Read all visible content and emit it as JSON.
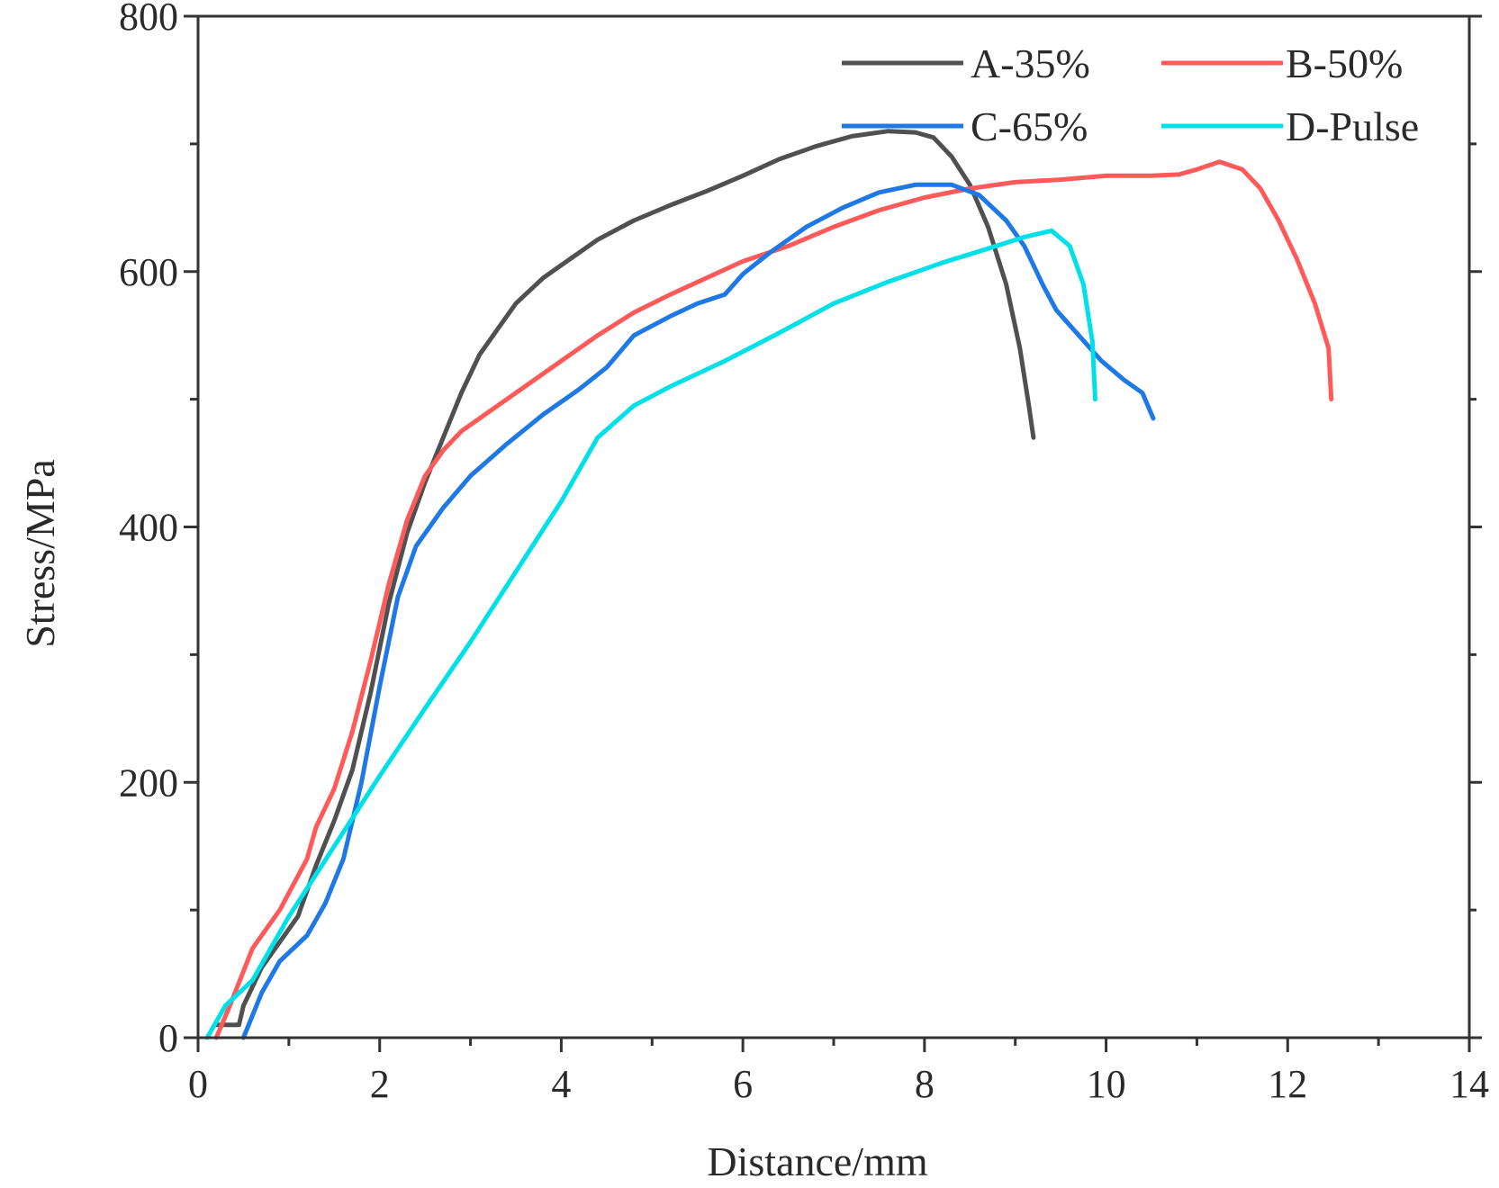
{
  "chart_data": {
    "type": "line",
    "title": "",
    "xlabel": "Distance/mm",
    "ylabel": "Stress/MPa",
    "xlim": [
      0,
      14
    ],
    "ylim": [
      0,
      800
    ],
    "xticks": [
      0,
      2,
      4,
      6,
      8,
      10,
      12,
      14
    ],
    "yticks": [
      0,
      200,
      400,
      600,
      800
    ],
    "legend_position": "top-right",
    "series": [
      {
        "name": "A-35%",
        "color": "#505050",
        "points": [
          [
            0.2,
            10
          ],
          [
            0.45,
            10
          ],
          [
            0.5,
            25
          ],
          [
            0.7,
            55
          ],
          [
            0.9,
            75
          ],
          [
            1.1,
            95
          ],
          [
            1.3,
            135
          ],
          [
            1.5,
            170
          ],
          [
            1.7,
            210
          ],
          [
            1.9,
            270
          ],
          [
            2.1,
            340
          ],
          [
            2.3,
            395
          ],
          [
            2.5,
            435
          ],
          [
            2.7,
            470
          ],
          [
            2.9,
            505
          ],
          [
            3.1,
            535
          ],
          [
            3.3,
            555
          ],
          [
            3.5,
            575
          ],
          [
            3.8,
            595
          ],
          [
            4.1,
            610
          ],
          [
            4.4,
            625
          ],
          [
            4.8,
            640
          ],
          [
            5.2,
            652
          ],
          [
            5.6,
            663
          ],
          [
            6.0,
            675
          ],
          [
            6.4,
            688
          ],
          [
            6.8,
            698
          ],
          [
            7.2,
            706
          ],
          [
            7.6,
            710
          ],
          [
            7.9,
            709
          ],
          [
            8.1,
            705
          ],
          [
            8.3,
            690
          ],
          [
            8.5,
            668
          ],
          [
            8.7,
            635
          ],
          [
            8.9,
            590
          ],
          [
            9.05,
            540
          ],
          [
            9.15,
            495
          ],
          [
            9.2,
            470
          ]
        ]
      },
      {
        "name": "B-50%",
        "color": "#ff5a5a",
        "points": [
          [
            0.2,
            0
          ],
          [
            0.35,
            25
          ],
          [
            0.6,
            70
          ],
          [
            0.9,
            100
          ],
          [
            1.2,
            140
          ],
          [
            1.3,
            165
          ],
          [
            1.5,
            195
          ],
          [
            1.7,
            240
          ],
          [
            1.9,
            295
          ],
          [
            2.1,
            355
          ],
          [
            2.3,
            405
          ],
          [
            2.5,
            440
          ],
          [
            2.7,
            460
          ],
          [
            2.9,
            475
          ],
          [
            3.2,
            490
          ],
          [
            3.6,
            510
          ],
          [
            4.0,
            530
          ],
          [
            4.4,
            550
          ],
          [
            4.8,
            568
          ],
          [
            5.2,
            582
          ],
          [
            5.6,
            595
          ],
          [
            6.0,
            608
          ],
          [
            6.5,
            620
          ],
          [
            7.0,
            635
          ],
          [
            7.5,
            648
          ],
          [
            8.0,
            658
          ],
          [
            8.5,
            665
          ],
          [
            9.0,
            670
          ],
          [
            9.5,
            672
          ],
          [
            10.0,
            675
          ],
          [
            10.5,
            675
          ],
          [
            10.8,
            676
          ],
          [
            11.0,
            680
          ],
          [
            11.25,
            686
          ],
          [
            11.5,
            680
          ],
          [
            11.7,
            665
          ],
          [
            11.9,
            640
          ],
          [
            12.1,
            610
          ],
          [
            12.3,
            575
          ],
          [
            12.45,
            540
          ],
          [
            12.48,
            500
          ]
        ]
      },
      {
        "name": "C-65%",
        "color": "#1e78e6",
        "points": [
          [
            0.5,
            0
          ],
          [
            0.7,
            35
          ],
          [
            0.9,
            60
          ],
          [
            1.2,
            80
          ],
          [
            1.4,
            105
          ],
          [
            1.6,
            140
          ],
          [
            1.8,
            200
          ],
          [
            2.0,
            275
          ],
          [
            2.2,
            345
          ],
          [
            2.4,
            385
          ],
          [
            2.7,
            415
          ],
          [
            3.0,
            440
          ],
          [
            3.4,
            465
          ],
          [
            3.8,
            488
          ],
          [
            4.2,
            508
          ],
          [
            4.5,
            525
          ],
          [
            4.8,
            550
          ],
          [
            5.2,
            565
          ],
          [
            5.5,
            575
          ],
          [
            5.8,
            582
          ],
          [
            6.0,
            598
          ],
          [
            6.3,
            615
          ],
          [
            6.7,
            635
          ],
          [
            7.1,
            650
          ],
          [
            7.5,
            662
          ],
          [
            7.9,
            668
          ],
          [
            8.3,
            668
          ],
          [
            8.6,
            660
          ],
          [
            8.9,
            640
          ],
          [
            9.1,
            620
          ],
          [
            9.3,
            590
          ],
          [
            9.45,
            570
          ],
          [
            9.7,
            550
          ],
          [
            9.95,
            530
          ],
          [
            10.2,
            515
          ],
          [
            10.4,
            505
          ],
          [
            10.52,
            485
          ]
        ]
      },
      {
        "name": "D-Pulse",
        "color": "#00e0e8",
        "points": [
          [
            0.1,
            0
          ],
          [
            0.3,
            25
          ],
          [
            0.6,
            45
          ],
          [
            1.0,
            95
          ],
          [
            1.5,
            150
          ],
          [
            2.0,
            205
          ],
          [
            2.5,
            258
          ],
          [
            3.0,
            310
          ],
          [
            3.5,
            365
          ],
          [
            4.0,
            420
          ],
          [
            4.4,
            470
          ],
          [
            4.8,
            495
          ],
          [
            5.2,
            510
          ],
          [
            5.8,
            530
          ],
          [
            6.4,
            552
          ],
          [
            7.0,
            575
          ],
          [
            7.6,
            592
          ],
          [
            8.2,
            607
          ],
          [
            8.7,
            618
          ],
          [
            9.1,
            627
          ],
          [
            9.4,
            632
          ],
          [
            9.6,
            620
          ],
          [
            9.75,
            590
          ],
          [
            9.85,
            545
          ],
          [
            9.88,
            500
          ]
        ]
      }
    ]
  }
}
